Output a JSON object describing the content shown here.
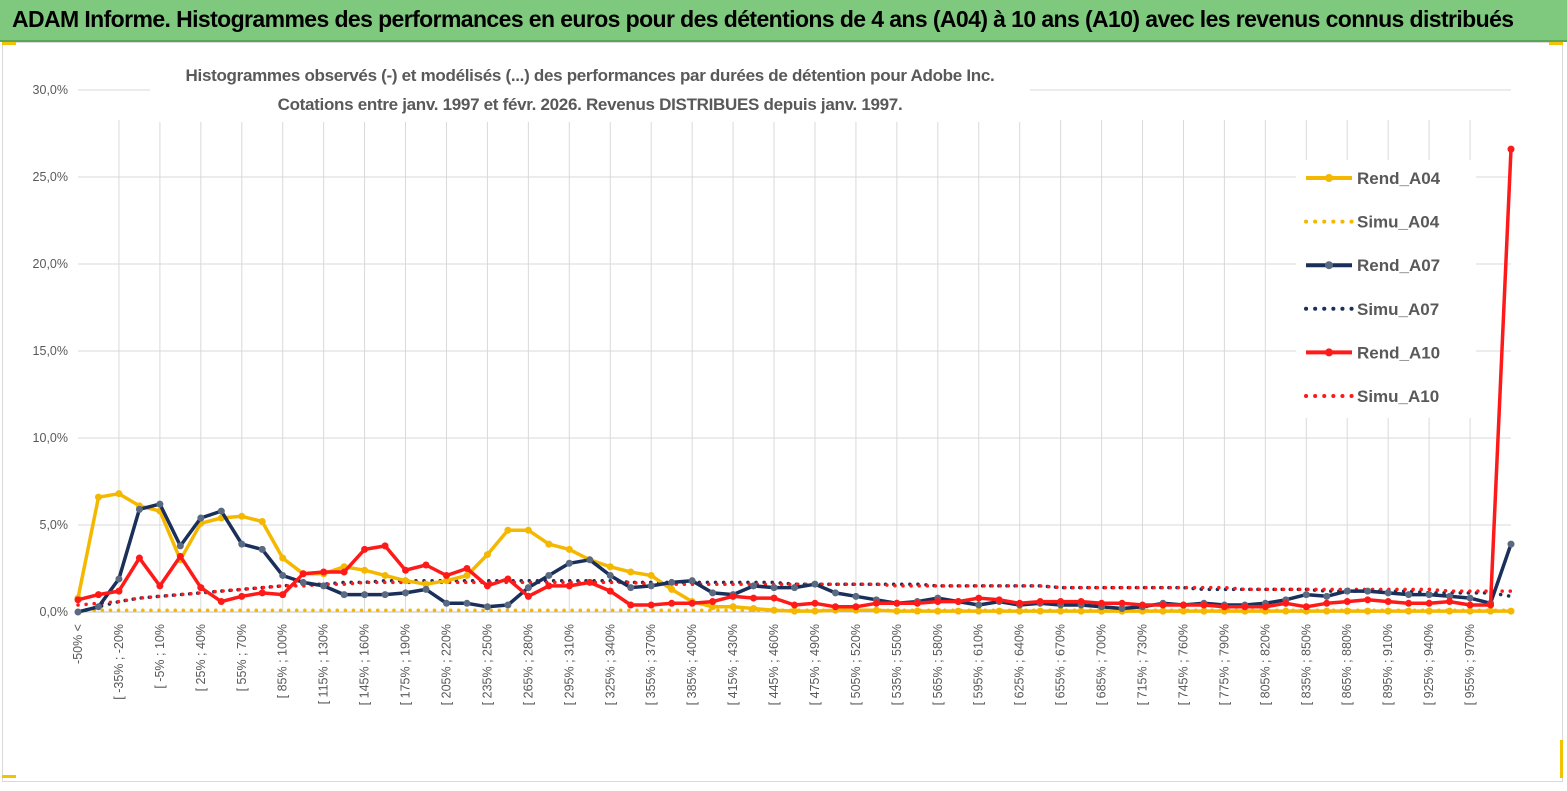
{
  "banner": {
    "title": "ADAM Informe. Histogrammes des performances en euros pour des détentions de 4 ans (A04) à 10 ans (A10) avec les revenus connus distribués"
  },
  "chart_data": {
    "type": "line",
    "title_lines": [
      "Histogrammes observés (-) et modélisés (...) des performances par durées de détention pour Adobe Inc.",
      "Cotations entre janv. 1997 et févr.  2026. Revenus DISTRIBUES depuis janv. 1997."
    ],
    "y_ticks": [
      "0,0%",
      "5,0%",
      "10,0%",
      "15,0%",
      "20,0%",
      "25,0%",
      "30,0%"
    ],
    "ylim": [
      0,
      30
    ],
    "x_tick_labels": [
      "-50% <",
      "[ -35% ; -20%",
      "[ -5% ; 10%",
      "[ 25% ; 40%",
      "[ 55% ; 70%",
      "[ 85% ; 100%",
      "[ 115% ; 130%",
      "[ 145% ; 160%",
      "[ 175% ; 190%",
      "[ 205% ; 220%",
      "[ 235% ; 250%",
      "[ 265% ; 280%",
      "[ 295% ; 310%",
      "[ 325% ; 340%",
      "[ 355% ; 370%",
      "[ 385% ; 400%",
      "[ 415% ; 430%",
      "[ 445% ; 460%",
      "[ 475% ; 490%",
      "[ 505% ; 520%",
      "[ 535% ; 550%",
      "[ 565% ; 580%",
      "[ 595% ; 610%",
      "[ 625% ; 640%",
      "[ 655% ; 670%",
      "[ 685% ; 700%",
      "[ 715% ; 730%",
      "[ 745% ; 760%",
      "[ 775% ; 790%",
      "[ 805% ; 820%",
      "[ 835% ; 850%",
      "[ 865% ; 880%",
      "[ 895% ; 910%",
      "[ 925% ; 940%",
      "[ 955% ; 970%"
    ],
    "grid": true,
    "legend_position": "right",
    "series": [
      {
        "name": "Rend_A04",
        "color": "#f5b800",
        "style": "solid",
        "markers": true,
        "values": [
          0.8,
          6.6,
          6.8,
          6.1,
          5.8,
          3.0,
          5.1,
          5.4,
          5.5,
          5.2,
          3.1,
          2.2,
          2.2,
          2.6,
          2.4,
          2.1,
          1.8,
          1.6,
          1.8,
          2.1,
          3.3,
          4.7,
          4.7,
          3.9,
          3.6,
          3.0,
          2.6,
          2.3,
          2.1,
          1.3,
          0.6,
          0.3,
          0.3,
          0.2,
          0.1,
          0.05,
          0.05,
          0.1,
          0.1,
          0.1,
          0.05,
          0.05,
          0.05,
          0.05,
          0.05,
          0.05,
          0.05,
          0.05,
          0.05,
          0.05,
          0.05,
          0.05,
          0.05,
          0.05,
          0.05,
          0.05,
          0.05,
          0.05,
          0.05,
          0.05,
          0.05,
          0.05,
          0.05,
          0.05,
          0.05,
          0.05,
          0.05,
          0.05,
          0.05,
          0.05,
          0.05
        ]
      },
      {
        "name": "Simu_A04",
        "color": "#f5b800",
        "style": "dotted",
        "markers": false,
        "values": [
          0.1,
          0.1,
          0.1,
          0.1,
          0.1,
          0.1,
          0.1,
          0.1,
          0.1,
          0.1,
          0.1,
          0.1,
          0.1,
          0.1,
          0.1,
          0.1,
          0.1,
          0.1,
          0.1,
          0.1,
          0.1,
          0.1,
          0.1,
          0.1,
          0.1,
          0.1,
          0.1,
          0.1,
          0.1,
          0.1,
          0.1,
          0.1,
          0.1,
          0.1,
          0.1,
          0.1,
          0.1,
          0.1,
          0.1,
          0.1,
          0.1,
          0.1,
          0.1,
          0.1,
          0.1,
          0.1,
          0.1,
          0.1,
          0.1,
          0.1,
          0.1,
          0.1,
          0.1,
          0.1,
          0.1,
          0.1,
          0.1,
          0.1,
          0.1,
          0.1,
          0.1,
          0.1,
          0.1,
          0.1,
          0.1,
          0.1,
          0.1,
          0.1,
          0.1,
          0.1,
          0.1
        ]
      },
      {
        "name": "Rend_A07",
        "color": "#1a2f5a",
        "style": "solid",
        "markers": true,
        "values": [
          0.0,
          0.3,
          1.9,
          5.9,
          6.2,
          3.8,
          5.4,
          5.8,
          3.9,
          3.6,
          2.1,
          1.7,
          1.5,
          1.0,
          1.0,
          1.0,
          1.1,
          1.3,
          0.5,
          0.5,
          0.3,
          0.4,
          1.4,
          2.1,
          2.8,
          3.0,
          2.1,
          1.4,
          1.5,
          1.7,
          1.8,
          1.1,
          1.0,
          1.5,
          1.4,
          1.4,
          1.6,
          1.1,
          0.9,
          0.7,
          0.5,
          0.6,
          0.8,
          0.6,
          0.4,
          0.6,
          0.4,
          0.5,
          0.4,
          0.4,
          0.3,
          0.2,
          0.3,
          0.5,
          0.4,
          0.5,
          0.4,
          0.4,
          0.5,
          0.7,
          1.0,
          0.9,
          1.2,
          1.2,
          1.1,
          1.0,
          1.0,
          0.9,
          0.8,
          0.5,
          3.9
        ]
      },
      {
        "name": "Simu_A07",
        "color": "#1a2f5a",
        "style": "dotted",
        "markers": false,
        "values": [
          0.0,
          0.3,
          0.6,
          0.8,
          0.9,
          1.0,
          1.1,
          1.2,
          1.3,
          1.4,
          1.5,
          1.6,
          1.6,
          1.7,
          1.7,
          1.8,
          1.8,
          1.8,
          1.8,
          1.8,
          1.8,
          1.8,
          1.8,
          1.8,
          1.8,
          1.8,
          1.8,
          1.7,
          1.7,
          1.7,
          1.7,
          1.7,
          1.7,
          1.7,
          1.7,
          1.6,
          1.6,
          1.6,
          1.6,
          1.6,
          1.6,
          1.6,
          1.5,
          1.5,
          1.5,
          1.5,
          1.5,
          1.5,
          1.4,
          1.4,
          1.4,
          1.4,
          1.4,
          1.4,
          1.4,
          1.3,
          1.3,
          1.3,
          1.3,
          1.3,
          1.3,
          1.2,
          1.2,
          1.2,
          1.2,
          1.2,
          1.1,
          1.1,
          1.1,
          1.1,
          0.9
        ]
      },
      {
        "name": "Rend_A10",
        "color": "#ff1a1a",
        "style": "solid",
        "markers": true,
        "values": [
          0.7,
          1.0,
          1.2,
          3.1,
          1.5,
          3.2,
          1.4,
          0.6,
          0.9,
          1.1,
          1.0,
          2.2,
          2.3,
          2.3,
          3.6,
          3.8,
          2.4,
          2.7,
          2.1,
          2.5,
          1.5,
          1.9,
          0.9,
          1.5,
          1.5,
          1.7,
          1.2,
          0.4,
          0.4,
          0.5,
          0.5,
          0.6,
          0.9,
          0.8,
          0.8,
          0.4,
          0.5,
          0.3,
          0.3,
          0.5,
          0.5,
          0.5,
          0.6,
          0.6,
          0.8,
          0.7,
          0.5,
          0.6,
          0.6,
          0.6,
          0.5,
          0.5,
          0.4,
          0.4,
          0.4,
          0.4,
          0.3,
          0.3,
          0.3,
          0.5,
          0.3,
          0.5,
          0.6,
          0.7,
          0.6,
          0.5,
          0.5,
          0.6,
          0.4,
          0.4,
          26.6
        ]
      },
      {
        "name": "Simu_A10",
        "color": "#ff1a1a",
        "style": "dotted",
        "markers": false,
        "values": [
          0.4,
          0.5,
          0.6,
          0.8,
          0.9,
          1.0,
          1.1,
          1.2,
          1.3,
          1.4,
          1.5,
          1.5,
          1.6,
          1.6,
          1.7,
          1.7,
          1.7,
          1.7,
          1.7,
          1.7,
          1.7,
          1.7,
          1.7,
          1.7,
          1.7,
          1.7,
          1.7,
          1.7,
          1.6,
          1.6,
          1.6,
          1.6,
          1.6,
          1.6,
          1.6,
          1.6,
          1.6,
          1.6,
          1.6,
          1.6,
          1.5,
          1.5,
          1.5,
          1.5,
          1.5,
          1.5,
          1.5,
          1.5,
          1.4,
          1.4,
          1.4,
          1.4,
          1.4,
          1.4,
          1.4,
          1.4,
          1.4,
          1.3,
          1.3,
          1.3,
          1.3,
          1.3,
          1.3,
          1.3,
          1.3,
          1.3,
          1.3,
          1.2,
          1.2,
          1.2,
          1.2
        ]
      }
    ]
  }
}
